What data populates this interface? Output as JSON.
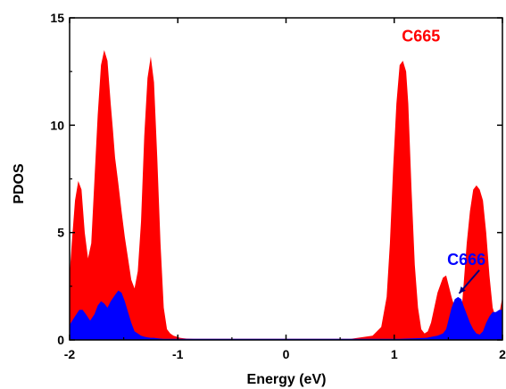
{
  "chart_data": {
    "type": "area",
    "title": "",
    "xlabel": "Energy (eV)",
    "ylabel": "PDOS",
    "xlim": [
      -2,
      2
    ],
    "ylim": [
      0,
      15
    ],
    "xticks": [
      -2,
      -1,
      0,
      1,
      2
    ],
    "yticks": [
      0,
      5,
      10,
      15
    ],
    "grid": false,
    "legend": "none",
    "series": [
      {
        "name": "C665",
        "color": "#ff0000",
        "x": [
          -2.0,
          -1.98,
          -1.95,
          -1.92,
          -1.89,
          -1.86,
          -1.83,
          -1.8,
          -1.77,
          -1.74,
          -1.71,
          -1.68,
          -1.65,
          -1.62,
          -1.6,
          -1.58,
          -1.55,
          -1.52,
          -1.49,
          -1.46,
          -1.43,
          -1.4,
          -1.37,
          -1.34,
          -1.31,
          -1.28,
          -1.25,
          -1.22,
          -1.19,
          -1.16,
          -1.13,
          -1.1,
          -1.07,
          -1.04,
          -1.01,
          -0.98,
          -0.95,
          -0.92,
          -0.85,
          -0.8,
          -0.75,
          -0.7,
          -0.6,
          -0.4,
          -0.2,
          0.0,
          0.2,
          0.4,
          0.6,
          0.8,
          0.88,
          0.93,
          0.96,
          0.99,
          1.02,
          1.05,
          1.08,
          1.11,
          1.13,
          1.16,
          1.19,
          1.22,
          1.25,
          1.28,
          1.31,
          1.34,
          1.37,
          1.4,
          1.45,
          1.48,
          1.5,
          1.53,
          1.56,
          1.59,
          1.62,
          1.64,
          1.67,
          1.7,
          1.73,
          1.76,
          1.79,
          1.82,
          1.85,
          1.88,
          1.91,
          1.94,
          1.97,
          2.0
        ],
        "values": [
          3.0,
          4.5,
          6.5,
          7.4,
          7.0,
          5.0,
          3.8,
          4.5,
          7.5,
          10.5,
          12.8,
          13.5,
          13.0,
          11.0,
          9.8,
          8.5,
          7.3,
          6.0,
          4.8,
          3.8,
          2.8,
          2.4,
          3.2,
          5.5,
          9.5,
          12.2,
          13.2,
          12.0,
          8.5,
          4.5,
          1.5,
          0.5,
          0.3,
          0.2,
          0.15,
          0.1,
          0.08,
          0.06,
          0.05,
          0.05,
          0.05,
          0.05,
          0.05,
          0.05,
          0.05,
          0.05,
          0.05,
          0.05,
          0.05,
          0.2,
          0.6,
          2.0,
          4.5,
          8.0,
          11.0,
          12.8,
          13.0,
          12.5,
          11.0,
          7.0,
          3.5,
          1.5,
          0.5,
          0.3,
          0.4,
          0.8,
          1.5,
          2.2,
          2.9,
          3.0,
          2.6,
          2.0,
          1.5,
          1.1,
          1.2,
          2.5,
          4.5,
          6.0,
          7.0,
          7.2,
          7.0,
          6.5,
          5.0,
          3.0,
          1.5,
          1.0,
          1.2,
          2.0
        ]
      },
      {
        "name": "C666",
        "color": "#0000ff",
        "x": [
          -2.0,
          -1.95,
          -1.91,
          -1.88,
          -1.85,
          -1.81,
          -1.77,
          -1.74,
          -1.71,
          -1.68,
          -1.65,
          -1.62,
          -1.58,
          -1.55,
          -1.52,
          -1.49,
          -1.46,
          -1.43,
          -1.4,
          -1.37,
          -1.34,
          -1.31,
          -1.28,
          -1.25,
          -1.22,
          -1.19,
          -1.16,
          -1.13,
          -1.1,
          -1.05,
          -1.0,
          -0.9,
          -0.8,
          -0.6,
          -0.4,
          -0.2,
          0.0,
          0.2,
          0.4,
          0.6,
          0.8,
          0.9,
          1.0,
          1.05,
          1.1,
          1.2,
          1.3,
          1.35,
          1.4,
          1.45,
          1.48,
          1.5,
          1.53,
          1.56,
          1.59,
          1.62,
          1.64,
          1.67,
          1.7,
          1.73,
          1.76,
          1.79,
          1.82,
          1.85,
          1.88,
          1.91,
          1.94,
          1.97,
          2.0
        ],
        "values": [
          0.7,
          1.1,
          1.4,
          1.4,
          1.2,
          0.9,
          1.2,
          1.6,
          1.8,
          1.7,
          1.5,
          1.8,
          2.1,
          2.3,
          2.2,
          1.8,
          1.3,
          0.8,
          0.4,
          0.3,
          0.2,
          0.15,
          0.12,
          0.1,
          0.1,
          0.08,
          0.06,
          0.05,
          0.05,
          0.05,
          0.05,
          0.05,
          0.05,
          0.05,
          0.05,
          0.05,
          0.05,
          0.05,
          0.05,
          0.05,
          0.05,
          0.05,
          0.05,
          0.05,
          0.06,
          0.08,
          0.1,
          0.15,
          0.2,
          0.3,
          0.5,
          0.9,
          1.5,
          1.9,
          2.0,
          1.9,
          1.6,
          1.2,
          0.8,
          0.5,
          0.3,
          0.25,
          0.4,
          0.8,
          1.1,
          1.3,
          1.3,
          1.4,
          1.4
        ]
      }
    ],
    "annotations": [
      {
        "text": "C665",
        "color": "#ff0000",
        "x": 1.07,
        "y": 13.9
      },
      {
        "text": "C666",
        "color": "#0000ff",
        "x": 1.49,
        "y": 3.5,
        "arrow_to": [
          1.6,
          2.0
        ]
      }
    ]
  }
}
